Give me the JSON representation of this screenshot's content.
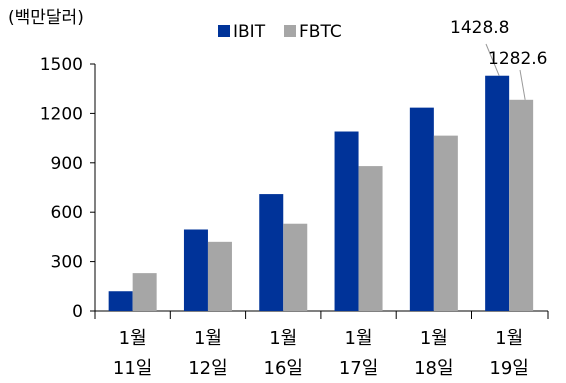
{
  "chart_data": {
    "type": "bar",
    "unit_label": "(백만달러)",
    "categories": [
      [
        "1월",
        "11일"
      ],
      [
        "1월",
        "12일"
      ],
      [
        "1월",
        "16일"
      ],
      [
        "1월",
        "17일"
      ],
      [
        "1월",
        "18일"
      ],
      [
        "1월",
        "19일"
      ]
    ],
    "series": [
      {
        "name": "IBIT",
        "color": "#003399",
        "values": [
          120,
          495,
          710,
          1090,
          1235,
          1428.8
        ]
      },
      {
        "name": "FBTC",
        "color": "#a6a6a6",
        "values": [
          230,
          420,
          530,
          880,
          1065,
          1282.6
        ]
      }
    ],
    "ylim": [
      0,
      1500
    ],
    "yticks": [
      "0",
      "300",
      "600",
      "900",
      "1200",
      "1500"
    ],
    "annotations": [
      {
        "text": "1428.8",
        "series": 0,
        "category": 5
      },
      {
        "text": "1282.6",
        "series": 1,
        "category": 5
      }
    ],
    "legend_position": "top-center",
    "grid": false
  }
}
